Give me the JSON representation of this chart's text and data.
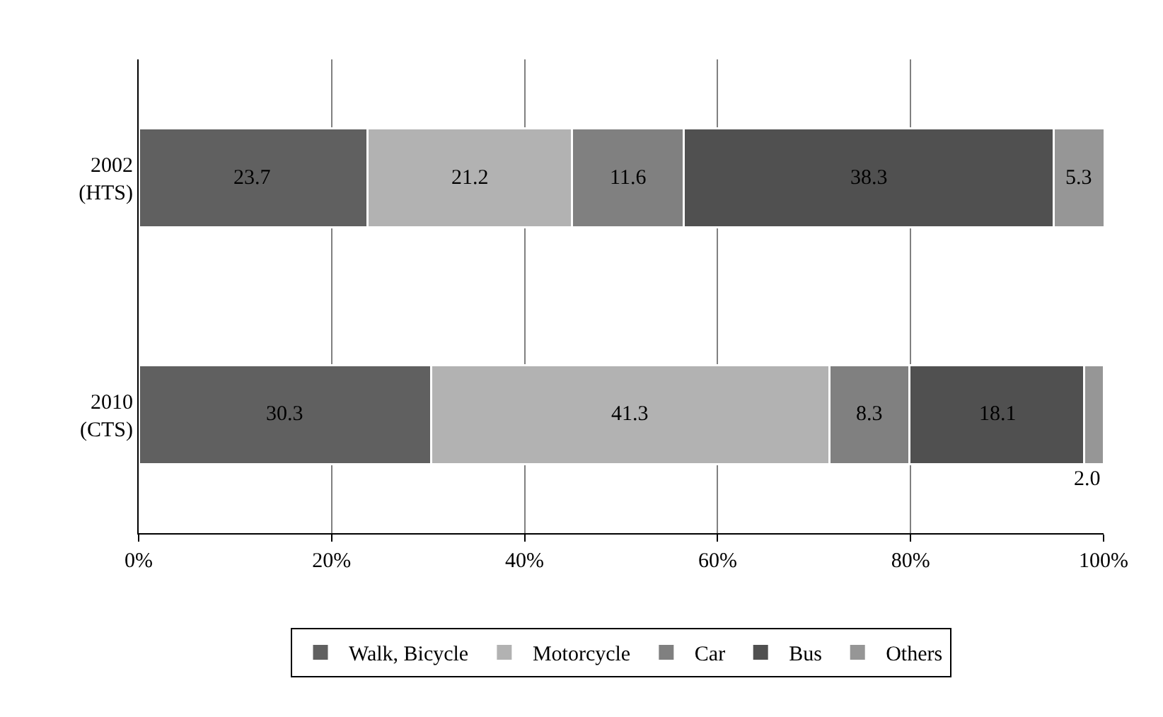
{
  "chart_data": {
    "type": "bar",
    "orientation": "horizontal",
    "stacked": true,
    "categories": [
      "2002\n(HTS)",
      "2010\n(CTS)"
    ],
    "series": [
      {
        "name": "Walk, Bicycle",
        "color": "#606060",
        "values": [
          23.7,
          30.3
        ],
        "value_labels": [
          "23.7",
          "30.3"
        ]
      },
      {
        "name": "Motorcycle",
        "color": "#b2b2b2",
        "values": [
          21.2,
          41.3
        ],
        "value_labels": [
          "21.2",
          "41.3"
        ]
      },
      {
        "name": "Car",
        "color": "#808080",
        "values": [
          11.6,
          8.3
        ],
        "value_labels": [
          "11.6",
          "8.3"
        ]
      },
      {
        "name": "Bus",
        "color": "#505050",
        "values": [
          38.3,
          18.1
        ],
        "value_labels": [
          "38.3",
          "18.1"
        ]
      },
      {
        "name": "Others",
        "color": "#969696",
        "values": [
          5.3,
          2.0
        ],
        "value_labels": [
          "5.3",
          "2.0"
        ]
      }
    ],
    "xlim": [
      0,
      100
    ],
    "xticks": [
      {
        "value": 0,
        "label": "0%"
      },
      {
        "value": 20,
        "label": "20%"
      },
      {
        "value": 40,
        "label": "40%"
      },
      {
        "value": 60,
        "label": "60%"
      },
      {
        "value": 80,
        "label": "80%"
      },
      {
        "value": 100,
        "label": "100%"
      }
    ],
    "grid": "x",
    "legend": "bottom"
  }
}
